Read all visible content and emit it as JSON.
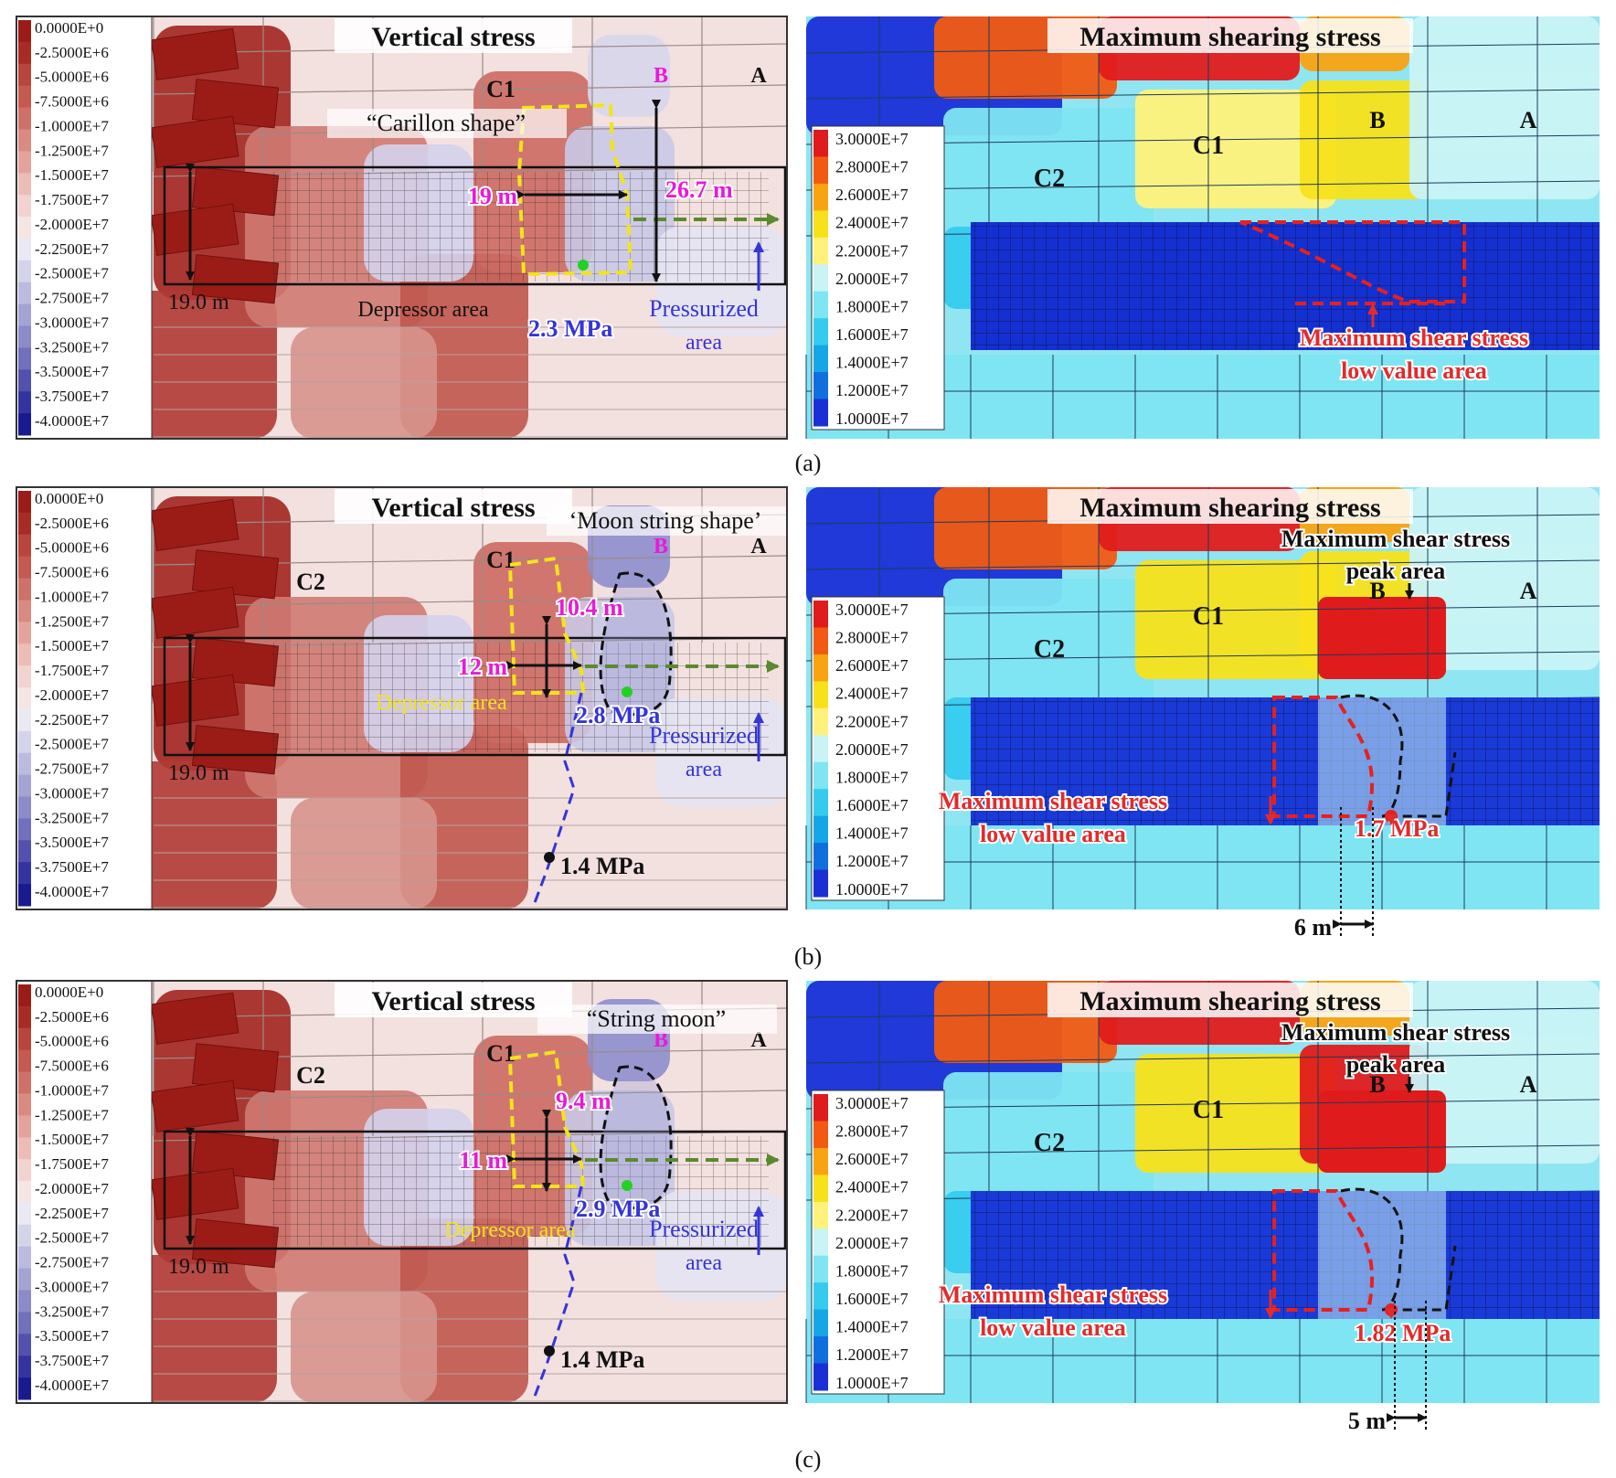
{
  "colors": {
    "vertical_scale": [
      "#9b1c17",
      "#a82c24",
      "#b8463d",
      "#c45a50",
      "#cf7168",
      "#d98a81",
      "#e3a39b",
      "#ecbcb6",
      "#f2d3cf",
      "#f5e5e3",
      "#ebeaf4",
      "#d3d3ea",
      "#bbbbe0",
      "#a3a3d4",
      "#8b8bc9",
      "#7070bd",
      "#5252ae",
      "#3434a0",
      "#1a1a8f"
    ],
    "shear_scale": [
      "#e01b1b",
      "#f25a12",
      "#f8a312",
      "#f8e11a",
      "#fff27a",
      "#c9f3f5",
      "#7fe5f2",
      "#35cbee",
      "#15a6e6",
      "#0f6fdd",
      "#1a2fd6"
    ],
    "label_magenta": "#e81ad8",
    "label_red": "#e22b2b",
    "label_blue": "#3535d6",
    "arrow_green": "#5a8a2e",
    "outline_yellow": "#f2e41a",
    "dash_red": "#e62020"
  },
  "vertical_legend": [
    "0.0000E+0",
    "-2.5000E+6",
    "-5.0000E+6",
    "-7.5000E+6",
    "-1.0000E+7",
    "-1.2500E+7",
    "-1.5000E+7",
    "-1.7500E+7",
    "-2.0000E+7",
    "-2.2500E+7",
    "-2.5000E+7",
    "-2.7500E+7",
    "-3.0000E+7",
    "-3.2500E+7",
    "-3.5000E+7",
    "-3.7500E+7",
    "-4.0000E+7"
  ],
  "shear_legend": [
    "3.0000E+7",
    "2.8000E+7",
    "2.6000E+7",
    "2.4000E+7",
    "2.2000E+7",
    "2.0000E+7",
    "1.8000E+7",
    "1.6000E+7",
    "1.4000E+7",
    "1.2000E+7",
    "1.0000E+7"
  ],
  "titles": {
    "vertical": "Vertical stress",
    "shear": "Maximum shearing stress"
  },
  "panels": [
    {
      "caption": "(a)",
      "left": {
        "zone_a": "A",
        "zone_b": "B",
        "zone_c1": "C1",
        "zone_c2": "",
        "shape_label": "“Carillon shape”",
        "width_label": "19 m",
        "height_label": "26.7 m",
        "seam_height": "19.0 m",
        "depressor": "Depressor area",
        "pressure": "2.3 MPa",
        "pressure2": "",
        "pressurized_1": "Pressurized",
        "pressurized_2": "area"
      },
      "right": {
        "zone_a": "A",
        "zone_b": "B",
        "zone_c1": "C1",
        "zone_c2": "C2",
        "peak_1": "",
        "peak_2": "",
        "low_1": "Maximum shear stress",
        "low_2": "low value area",
        "pressure": "",
        "distance": ""
      }
    },
    {
      "caption": "(b)",
      "left": {
        "zone_a": "A",
        "zone_b": "B",
        "zone_c1": "C1",
        "zone_c2": "C2",
        "shape_label": "‘Moon string shape’",
        "width_label": "12 m",
        "height_label": "10.4 m",
        "seam_height": "19.0 m",
        "depressor": "Depressor area",
        "pressure": "2.8 MPa",
        "pressure2": "1.4 MPa",
        "pressurized_1": "Pressurized",
        "pressurized_2": "area"
      },
      "right": {
        "zone_a": "A",
        "zone_b": "B",
        "zone_c1": "C1",
        "zone_c2": "C2",
        "peak_1": "Maximum shear stress",
        "peak_2": "peak area",
        "low_1": "Maximum shear stress",
        "low_2": "low value area",
        "pressure": "1.7 MPa",
        "distance": "6 m"
      }
    },
    {
      "caption": "(c)",
      "left": {
        "zone_a": "A",
        "zone_b": "B",
        "zone_c1": "C1",
        "zone_c2": "C2",
        "shape_label": "“String moon”",
        "width_label": "11 m",
        "height_label": "9.4 m",
        "seam_height": "19.0 m",
        "depressor": "Depressor area",
        "pressure": "2.9 MPa",
        "pressure2": "1.4 MPa",
        "pressurized_1": "Pressurized",
        "pressurized_2": "area"
      },
      "right": {
        "zone_a": "A",
        "zone_b": "B",
        "zone_c1": "C1",
        "zone_c2": "C2",
        "peak_1": "Maximum shear stress",
        "peak_2": "peak area",
        "low_1": "Maximum shear stress",
        "low_2": "low value area",
        "pressure": "1.82 MPa",
        "distance": "5 m"
      }
    }
  ]
}
